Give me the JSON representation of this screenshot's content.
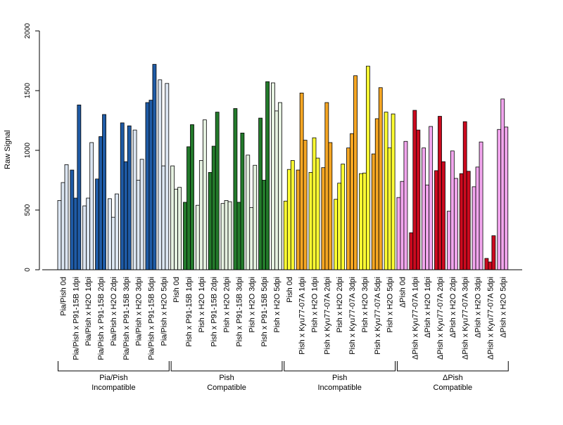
{
  "chart_data": {
    "type": "bar",
    "title": "",
    "ylabel": "Raw Signal",
    "ylim": [
      0,
      2000
    ],
    "yticks": [
      0,
      500,
      1000,
      1500,
      2000
    ],
    "grid": false,
    "legend": "none",
    "categories": [
      "Pia/Pish 0d",
      "Pia/Pish x P91-15B 1dpi",
      "Pia/Pish x H2O 1dpi",
      "Pia/Pish x P91-15B 2dpi",
      "Pia/Pish x H2O 2dpi",
      "Pia/Pish x P91-15B 3dpi",
      "Pia/Pish x H2O 3dpi",
      "Pia/Pish x P91-15B 5dpi",
      "Pia/Pish x H2O 5dpi",
      "Pish 0d",
      "Pish x P91-15B 1dpi",
      "Pish x H2O 1dpi",
      "Pish x P91-15B 2dpi",
      "Pish x H2O 2dpi",
      "Pish x P91-15B 3dpi",
      "Pish x H2O 3dpi",
      "Pish x P91-15B 5dpi",
      "Pish x H2O 5dpi",
      "Pish 0d",
      "Pish x Kyu77-07A 1dpi",
      "Pish x H2O 1dpi",
      "Pish x Kyu77-07A 2dpi",
      "Pish x H2O 2dpi",
      "Pish x Kyu77-07A 3dpi",
      "Pish x H2O 3dpi",
      "Pish x Kyu77-07A 5dpi",
      "Pish x H2O 5dpi",
      "ΔPish 0d",
      "ΔPish x Kyu77-07A 1dpi",
      "ΔPish x H2O 1dpi",
      "ΔPish x Kyu77-07A 2dpi",
      "ΔPish x H2O 2dpi",
      "ΔPish x Kyu77-07A 3dpi",
      "ΔPish x H2O 3dpi",
      "ΔPish x Kyu77-07A 5dpi",
      "ΔPish x H2O 5dpi"
    ],
    "values": [
      [
        580,
        730,
        880
      ],
      [
        835,
        600,
        1380
      ],
      [
        535,
        600,
        1065
      ],
      [
        760,
        1115,
        1300
      ],
      [
        595,
        440,
        635
      ],
      [
        1230,
        905,
        1205
      ],
      [
        1170,
        750,
        925
      ],
      [
        1400,
        1420,
        1720
      ],
      [
        1590,
        870,
        1560
      ],
      [
        870,
        675,
        690
      ],
      [
        565,
        1030,
        1215
      ],
      [
        540,
        915,
        1255
      ],
      [
        815,
        1035,
        1320
      ],
      [
        555,
        580,
        570
      ],
      [
        1350,
        565,
        1145
      ],
      [
        960,
        520,
        875
      ],
      [
        1270,
        750,
        1575
      ],
      [
        1565,
        1330,
        1400
      ],
      [
        575,
        840,
        915
      ],
      [
        835,
        1480,
        1085
      ],
      [
        815,
        1105,
        935
      ],
      [
        855,
        1400,
        1065
      ],
      [
        590,
        725,
        885
      ],
      [
        1020,
        1140,
        1625
      ],
      [
        805,
        810,
        1705
      ],
      [
        970,
        1265,
        1525
      ],
      [
        1320,
        1020,
        1305
      ],
      [
        605,
        740,
        1075
      ],
      [
        310,
        1335,
        1170
      ],
      [
        1020,
        710,
        1200
      ],
      [
        830,
        1285,
        905
      ],
      [
        490,
        995,
        765
      ],
      [
        805,
        1240,
        825
      ],
      [
        695,
        860,
        1070
      ],
      [
        95,
        65,
        285
      ],
      [
        1175,
        1430,
        1195
      ]
    ],
    "groups": [
      {
        "name": "Pia/Pish",
        "label": "Incompatible",
        "start": 0,
        "end": 8
      },
      {
        "name": "Pish",
        "label": "Compatible",
        "start": 9,
        "end": 17
      },
      {
        "name": "Pish",
        "label": "Incompatible",
        "start": 18,
        "end": 26
      },
      {
        "name": "ΔPish",
        "label": "Compatible",
        "start": 27,
        "end": 35
      }
    ],
    "colors": {
      "light_blue": "#dce6f2",
      "dark_blue": "#1f5ba6",
      "light_green": "#e6f2e1",
      "dark_green": "#237a2b",
      "yellow": "#ffff33",
      "orange": "#f5a623",
      "pink": "#f2a6ee",
      "red": "#cc0a1f"
    },
    "category_colors": [
      "light_blue",
      "dark_blue",
      "light_blue",
      "dark_blue",
      "light_blue",
      "dark_blue",
      "light_blue",
      "dark_blue",
      "light_blue",
      "light_green",
      "dark_green",
      "light_green",
      "dark_green",
      "light_green",
      "dark_green",
      "light_green",
      "dark_green",
      "light_green",
      "yellow",
      "orange",
      "yellow",
      "orange",
      "yellow",
      "orange",
      "yellow",
      "orange",
      "yellow",
      "pink",
      "red",
      "pink",
      "red",
      "pink",
      "red",
      "pink",
      "red",
      "pink"
    ]
  }
}
